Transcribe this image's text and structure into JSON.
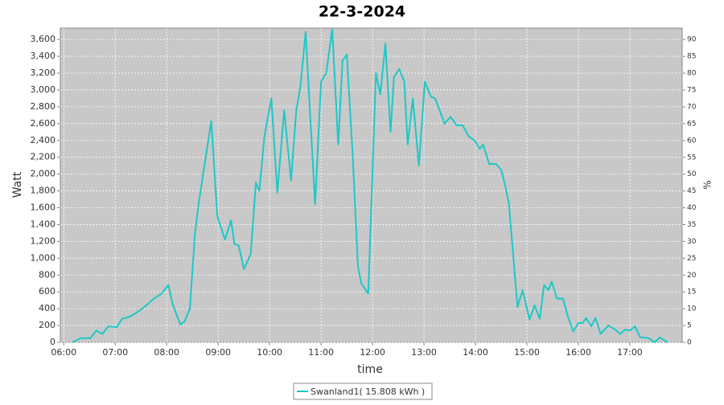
{
  "chart_data": {
    "type": "line",
    "title": "22-3-2024",
    "x_label": "time",
    "y_label": "Watt",
    "y2_label": "%",
    "x": [
      "06:10",
      "06:20",
      "06:31",
      "06:38",
      "06:45",
      "06:52",
      "07:02",
      "07:08",
      "07:16",
      "07:23",
      "07:34",
      "07:45",
      "07:53",
      "08:02",
      "08:07",
      "08:16",
      "08:21",
      "08:27",
      "08:33",
      "08:38",
      "08:44",
      "08:52",
      "08:59",
      "09:08",
      "09:15",
      "09:19",
      "09:24",
      "09:30",
      "09:38",
      "09:44",
      "09:48",
      "09:54",
      "10:02",
      "10:09",
      "10:17",
      "10:25",
      "10:31",
      "10:36",
      "10:42",
      "10:53",
      "11:00",
      "11:06",
      "11:13",
      "11:20",
      "11:25",
      "11:30",
      "11:37",
      "11:43",
      "11:47",
      "11:55",
      "12:04",
      "12:09",
      "12:15",
      "12:21",
      "12:25",
      "12:31",
      "12:37",
      "12:41",
      "12:47",
      "12:54",
      "13:01",
      "13:08",
      "13:13",
      "13:24",
      "13:31",
      "13:38",
      "13:45",
      "13:52",
      "13:59",
      "14:05",
      "14:09",
      "14:16",
      "14:24",
      "14:30",
      "14:35",
      "14:39",
      "14:49",
      "14:55",
      "15:03",
      "15:09",
      "15:15",
      "15:20",
      "15:25",
      "15:29",
      "15:35",
      "15:42",
      "15:48",
      "15:54",
      "16:00",
      "16:05",
      "16:09",
      "16:15",
      "16:20",
      "16:26",
      "16:35",
      "16:43",
      "16:49",
      "16:54",
      "17:00",
      "17:06",
      "17:12",
      "17:22",
      "17:29",
      "17:35",
      "17:44"
    ],
    "series": [
      {
        "name": "Swanland1( 15.808 kWh )",
        "color": "#1cc8c8",
        "values": [
          0,
          50,
          50,
          140,
          100,
          190,
          180,
          280,
          300,
          340,
          420,
          520,
          570,
          680,
          450,
          210,
          250,
          400,
          1300,
          1700,
          2100,
          2630,
          1500,
          1220,
          1450,
          1170,
          1150,
          870,
          1050,
          1900,
          1800,
          2450,
          2900,
          1780,
          2760,
          1920,
          2750,
          3050,
          3690,
          1640,
          3100,
          3200,
          3720,
          2350,
          3350,
          3420,
          2200,
          900,
          700,
          580,
          3200,
          2950,
          3550,
          2500,
          3150,
          3250,
          3100,
          2350,
          2900,
          2100,
          3100,
          2920,
          2900,
          2600,
          2680,
          2580,
          2580,
          2450,
          2400,
          2300,
          2350,
          2120,
          2120,
          2050,
          1850,
          1650,
          420,
          620,
          270,
          440,
          280,
          680,
          620,
          720,
          520,
          520,
          300,
          130,
          230,
          230,
          290,
          190,
          290,
          100,
          200,
          150,
          100,
          150,
          140,
          190,
          60,
          50,
          0,
          60,
          0
        ]
      }
    ],
    "xlim": [
      "05:56",
      "18:01"
    ],
    "xticks": [
      "06:00",
      "07:00",
      "08:00",
      "09:00",
      "10:00",
      "11:00",
      "12:00",
      "13:00",
      "14:00",
      "15:00",
      "16:00",
      "17:00"
    ],
    "ylim": [
      0,
      3735
    ],
    "yticks": [
      0,
      200,
      400,
      600,
      800,
      {
        "value": 1000,
        "label": "1,000"
      },
      {
        "value": 1200,
        "label": "1,200"
      },
      {
        "value": 1400,
        "label": "1,400"
      },
      {
        "value": 1600,
        "label": "1,600"
      },
      {
        "value": 1800,
        "label": "1,800"
      },
      {
        "value": 2000,
        "label": "2,000"
      },
      {
        "value": 2200,
        "label": "2,200"
      },
      {
        "value": 2400,
        "label": "2,400"
      },
      {
        "value": 2600,
        "label": "2,600"
      },
      {
        "value": 2800,
        "label": "2,800"
      },
      {
        "value": 3000,
        "label": "3,000"
      },
      {
        "value": 3200,
        "label": "3,200"
      },
      {
        "value": 3400,
        "label": "3,400"
      },
      {
        "value": 3600,
        "label": "3,600"
      }
    ],
    "y2lim": [
      0,
      93.4
    ],
    "y2ticks": [
      0,
      5,
      10,
      15,
      20,
      25,
      30,
      35,
      40,
      45,
      50,
      55,
      60,
      65,
      70,
      75,
      80,
      85,
      90
    ],
    "grid": true
  }
}
